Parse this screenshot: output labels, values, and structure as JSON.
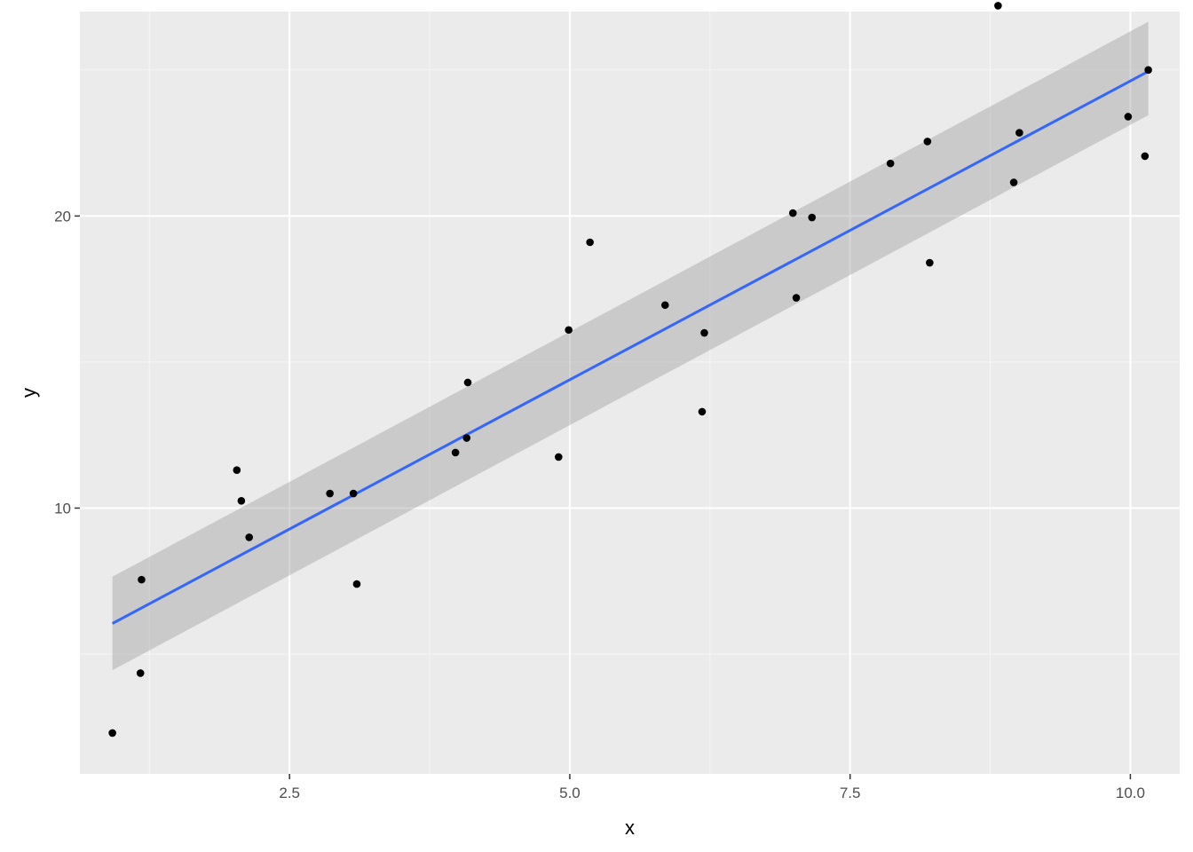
{
  "chart_data": {
    "type": "scatter",
    "title": "",
    "xlabel": "x",
    "ylabel": "y",
    "xlim": [
      0.63,
      10.44
    ],
    "ylim": [
      0.9,
      27.0
    ],
    "x_major_ticks": [
      2.5,
      5.0,
      7.5,
      10.0
    ],
    "x_tick_labels": [
      "2.5",
      "5.0",
      "7.5",
      "10.0"
    ],
    "x_minor_ticks": [
      1.25,
      3.75,
      6.25,
      8.75
    ],
    "y_major_ticks": [
      10,
      20
    ],
    "y_tick_labels": [
      "10",
      "20"
    ],
    "y_minor_ticks": [
      5,
      15,
      25
    ],
    "grid": true,
    "legend": "none",
    "points": [
      {
        "x": 0.92,
        "y": 2.3
      },
      {
        "x": 1.17,
        "y": 4.35
      },
      {
        "x": 1.18,
        "y": 7.55
      },
      {
        "x": 2.03,
        "y": 11.3
      },
      {
        "x": 2.07,
        "y": 10.25
      },
      {
        "x": 2.14,
        "y": 9.0
      },
      {
        "x": 2.86,
        "y": 10.5
      },
      {
        "x": 3.07,
        "y": 10.5
      },
      {
        "x": 3.1,
        "y": 7.4
      },
      {
        "x": 3.98,
        "y": 11.9
      },
      {
        "x": 4.08,
        "y": 12.4
      },
      {
        "x": 4.09,
        "y": 14.3
      },
      {
        "x": 4.9,
        "y": 11.75
      },
      {
        "x": 4.99,
        "y": 16.1
      },
      {
        "x": 5.18,
        "y": 19.1
      },
      {
        "x": 5.85,
        "y": 16.95
      },
      {
        "x": 6.18,
        "y": 13.3
      },
      {
        "x": 6.2,
        "y": 16.0
      },
      {
        "x": 6.99,
        "y": 20.1
      },
      {
        "x": 7.02,
        "y": 17.2
      },
      {
        "x": 7.16,
        "y": 19.95
      },
      {
        "x": 7.86,
        "y": 21.8
      },
      {
        "x": 8.19,
        "y": 22.55
      },
      {
        "x": 8.21,
        "y": 18.4
      },
      {
        "x": 8.82,
        "y": 27.2
      },
      {
        "x": 8.96,
        "y": 21.15
      },
      {
        "x": 9.01,
        "y": 22.85
      },
      {
        "x": 9.98,
        "y": 23.4
      },
      {
        "x": 10.13,
        "y": 22.05
      },
      {
        "x": 10.16,
        "y": 25.0
      }
    ],
    "smooth": {
      "method": "lm",
      "x": [
        0.92,
        10.16
      ],
      "fit": [
        6.05,
        24.95
      ],
      "lower": [
        4.45,
        23.45
      ],
      "upper": [
        7.65,
        26.65
      ]
    },
    "colors": {
      "panel_background": "#ebebeb",
      "grid_major": "#ffffff",
      "grid_minor": "#f5f5f5",
      "points": "#000000",
      "fit_line": "#3366ff",
      "confidence_band": "#999999"
    }
  }
}
